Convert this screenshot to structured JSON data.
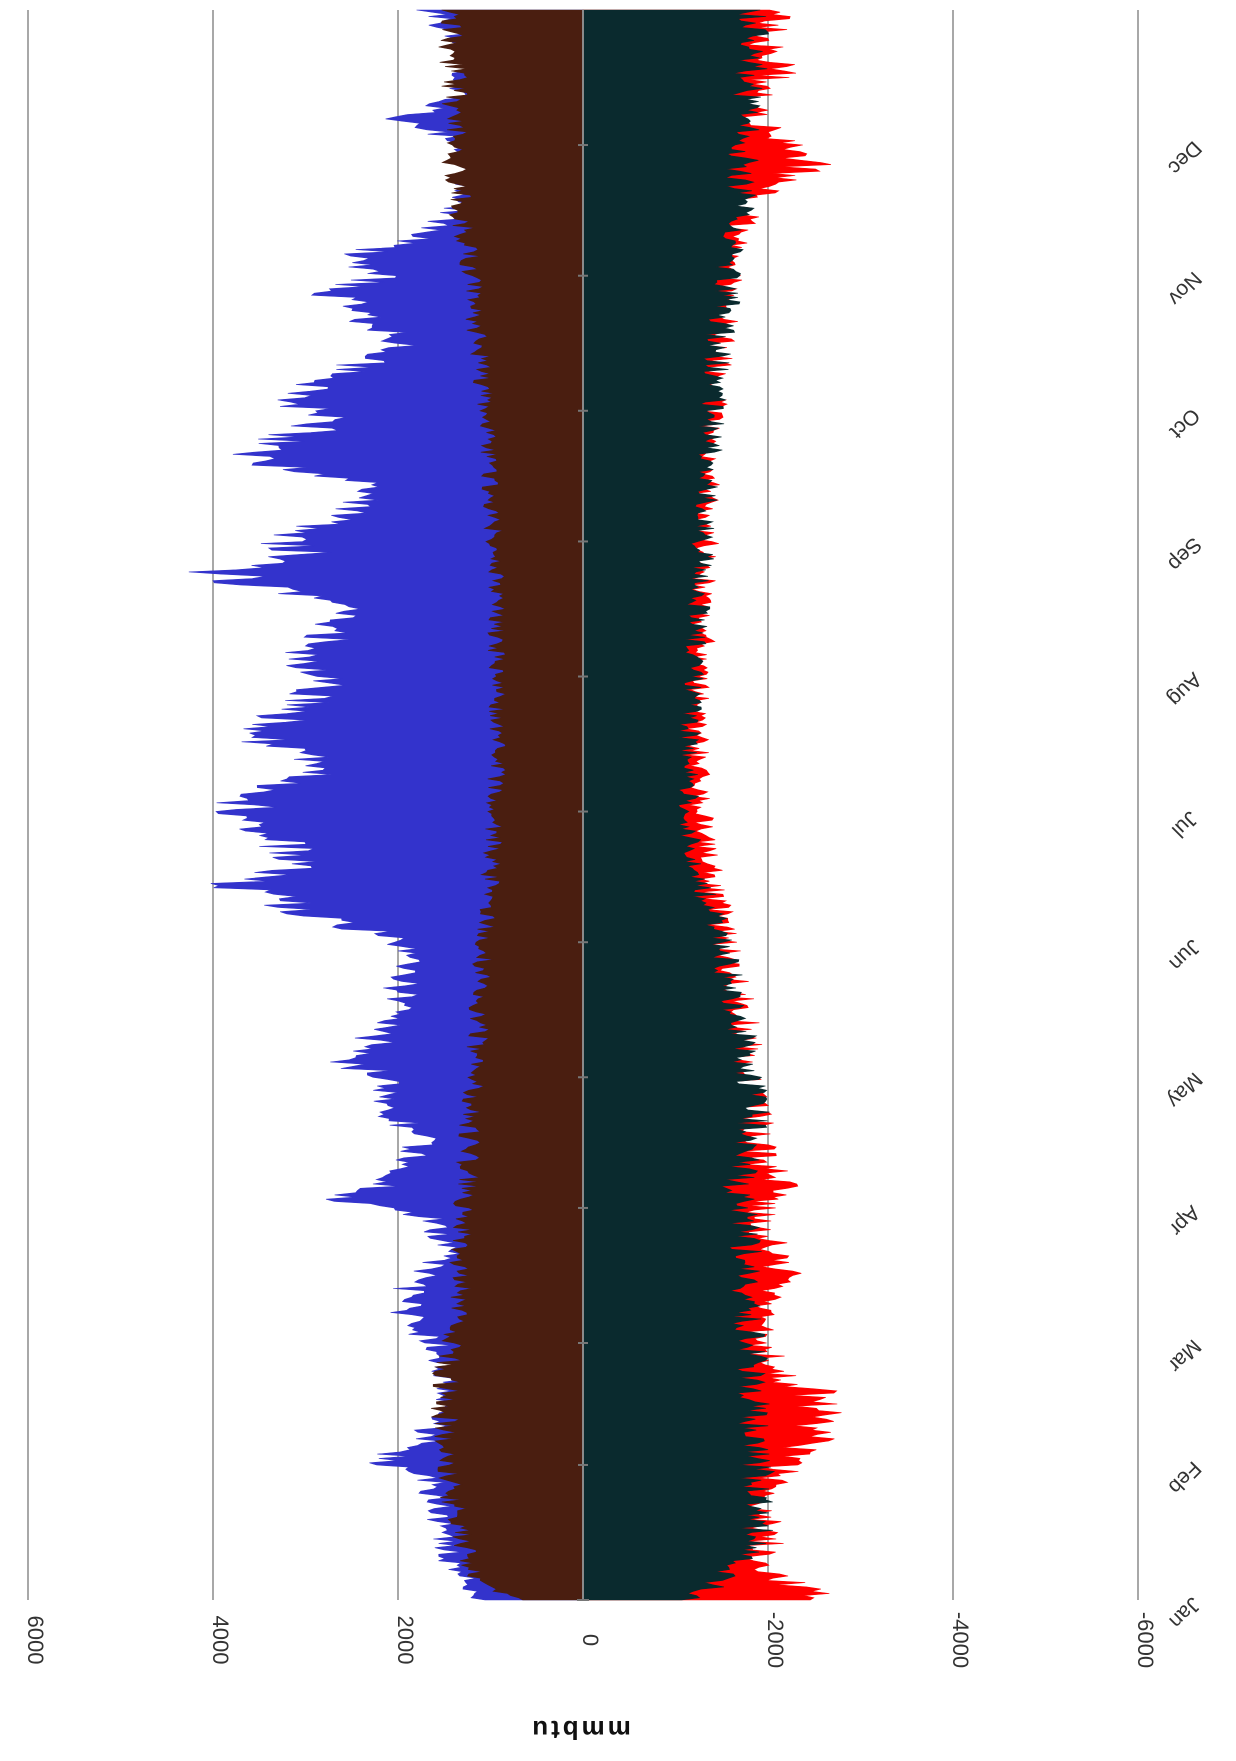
{
  "chart_data": {
    "type": "area",
    "orientation": "rotated-180",
    "title": "",
    "xlabel": "",
    "ylabel": "mmbtu",
    "ylim": [
      -6000,
      6000
    ],
    "y_ticks": [
      6000,
      4000,
      2000,
      0,
      -2000,
      -4000,
      -6000
    ],
    "y_tick_labels": [
      "6000",
      "4000",
      "2000",
      "0",
      "-2000",
      "-4000",
      "-6000"
    ],
    "x_range_days": [
      0,
      365
    ],
    "months": [
      {
        "label": "Jan",
        "day": 0
      },
      {
        "label": "Feb",
        "day": 31
      },
      {
        "label": "Mar",
        "day": 59
      },
      {
        "label": "Apr",
        "day": 90
      },
      {
        "label": "May",
        "day": 120
      },
      {
        "label": "Jun",
        "day": 151
      },
      {
        "label": "Jul",
        "day": 181
      },
      {
        "label": "Aug",
        "day": 212
      },
      {
        "label": "Sep",
        "day": 243
      },
      {
        "label": "Oct",
        "day": 273
      },
      {
        "label": "Nov",
        "day": 304
      },
      {
        "label": "Dec",
        "day": 334
      }
    ],
    "grid": true,
    "legend": "none",
    "series": [
      {
        "key": "positive_peak",
        "color": "#3333cc",
        "points": [
          [
            0,
            1100
          ],
          [
            10,
            1400
          ],
          [
            20,
            1500
          ],
          [
            28,
            1600
          ],
          [
            32,
            2100
          ],
          [
            36,
            1700
          ],
          [
            45,
            1400
          ],
          [
            58,
            1500
          ],
          [
            62,
            1700
          ],
          [
            67,
            1900
          ],
          [
            72,
            1800
          ],
          [
            80,
            1400
          ],
          [
            88,
            1600
          ],
          [
            92,
            2600
          ],
          [
            96,
            2000
          ],
          [
            101,
            1800
          ],
          [
            106,
            1700
          ],
          [
            110,
            1900
          ],
          [
            115,
            2100
          ],
          [
            120,
            2000
          ],
          [
            124,
            2600
          ],
          [
            128,
            2200
          ],
          [
            134,
            2000
          ],
          [
            140,
            1900
          ],
          [
            146,
            1800
          ],
          [
            152,
            1900
          ],
          [
            156,
            2700
          ],
          [
            160,
            3100
          ],
          [
            164,
            3600
          ],
          [
            168,
            3100
          ],
          [
            172,
            3000
          ],
          [
            176,
            3300
          ],
          [
            180,
            3700
          ],
          [
            184,
            3400
          ],
          [
            188,
            3000
          ],
          [
            192,
            2700
          ],
          [
            196,
            3200
          ],
          [
            200,
            3400
          ],
          [
            204,
            3000
          ],
          [
            208,
            2800
          ],
          [
            212,
            2700
          ],
          [
            216,
            2900
          ],
          [
            220,
            2700
          ],
          [
            224,
            2600
          ],
          [
            228,
            2500
          ],
          [
            232,
            3300
          ],
          [
            236,
            3800
          ],
          [
            240,
            2900
          ],
          [
            244,
            3200
          ],
          [
            248,
            2600
          ],
          [
            252,
            2300
          ],
          [
            256,
            2100
          ],
          [
            260,
            3100
          ],
          [
            264,
            3500
          ],
          [
            268,
            2900
          ],
          [
            272,
            2700
          ],
          [
            276,
            3100
          ],
          [
            280,
            2600
          ],
          [
            284,
            2300
          ],
          [
            288,
            1900
          ],
          [
            292,
            2100
          ],
          [
            296,
            2400
          ],
          [
            300,
            2600
          ],
          [
            304,
            2100
          ],
          [
            308,
            2500
          ],
          [
            312,
            1800
          ],
          [
            316,
            1500
          ],
          [
            320,
            1300
          ],
          [
            330,
            1200
          ],
          [
            335,
            1300
          ],
          [
            340,
            1900
          ],
          [
            345,
            1300
          ],
          [
            355,
            1200
          ],
          [
            365,
            1600
          ]
        ]
      },
      {
        "key": "positive_base",
        "color": "#4a1e10",
        "points": [
          [
            0,
            700
          ],
          [
            5,
            1100
          ],
          [
            15,
            1300
          ],
          [
            30,
            1400
          ],
          [
            45,
            1450
          ],
          [
            58,
            1400
          ],
          [
            70,
            1300
          ],
          [
            85,
            1250
          ],
          [
            100,
            1200
          ],
          [
            115,
            1150
          ],
          [
            130,
            1100
          ],
          [
            145,
            1050
          ],
          [
            155,
            1000
          ],
          [
            170,
            950
          ],
          [
            190,
            900
          ],
          [
            210,
            900
          ],
          [
            230,
            900
          ],
          [
            250,
            950
          ],
          [
            270,
            1000
          ],
          [
            290,
            1100
          ],
          [
            305,
            1150
          ],
          [
            320,
            1300
          ],
          [
            335,
            1350
          ],
          [
            350,
            1350
          ],
          [
            365,
            1400
          ]
        ]
      },
      {
        "key": "negative_peak",
        "color": "#ff0000",
        "points": [
          [
            0,
            -2500
          ],
          [
            6,
            -2000
          ],
          [
            10,
            -1900
          ],
          [
            20,
            -1900
          ],
          [
            28,
            -2000
          ],
          [
            32,
            -2100
          ],
          [
            36,
            -2400
          ],
          [
            42,
            -2500
          ],
          [
            48,
            -2400
          ],
          [
            52,
            -2000
          ],
          [
            58,
            -1900
          ],
          [
            64,
            -1800
          ],
          [
            70,
            -1900
          ],
          [
            76,
            -2100
          ],
          [
            80,
            -2000
          ],
          [
            86,
            -1800
          ],
          [
            90,
            -1900
          ],
          [
            92,
            -2000
          ],
          [
            96,
            -2100
          ],
          [
            100,
            -1900
          ],
          [
            104,
            -1850
          ],
          [
            110,
            -1800
          ],
          [
            115,
            -1750
          ],
          [
            120,
            -1700
          ],
          [
            130,
            -1700
          ],
          [
            140,
            -1600
          ],
          [
            150,
            -1500
          ],
          [
            160,
            -1400
          ],
          [
            170,
            -1300
          ],
          [
            180,
            -1250
          ],
          [
            190,
            -1200
          ],
          [
            200,
            -1200
          ],
          [
            210,
            -1200
          ],
          [
            220,
            -1250
          ],
          [
            230,
            -1250
          ],
          [
            240,
            -1300
          ],
          [
            250,
            -1300
          ],
          [
            260,
            -1300
          ],
          [
            270,
            -1350
          ],
          [
            280,
            -1400
          ],
          [
            290,
            -1450
          ],
          [
            300,
            -1500
          ],
          [
            310,
            -1600
          ],
          [
            320,
            -1700
          ],
          [
            326,
            -2100
          ],
          [
            330,
            -2400
          ],
          [
            336,
            -2000
          ],
          [
            342,
            -1800
          ],
          [
            348,
            -1900
          ],
          [
            352,
            -2100
          ],
          [
            356,
            -1900
          ],
          [
            360,
            -2000
          ],
          [
            365,
            -2000
          ]
        ]
      },
      {
        "key": "negative_base",
        "color": "#0a2a2e",
        "points": [
          [
            0,
            -1100
          ],
          [
            5,
            -1500
          ],
          [
            15,
            -1800
          ],
          [
            25,
            -1850
          ],
          [
            35,
            -1800
          ],
          [
            45,
            -1800
          ],
          [
            58,
            -1750
          ],
          [
            70,
            -1700
          ],
          [
            85,
            -1700
          ],
          [
            95,
            -1600
          ],
          [
            105,
            -1750
          ],
          [
            115,
            -1800
          ],
          [
            125,
            -1700
          ],
          [
            135,
            -1600
          ],
          [
            145,
            -1500
          ],
          [
            155,
            -1400
          ],
          [
            165,
            -1200
          ],
          [
            180,
            -1100
          ],
          [
            195,
            -1100
          ],
          [
            210,
            -1150
          ],
          [
            225,
            -1200
          ],
          [
            240,
            -1250
          ],
          [
            255,
            -1300
          ],
          [
            270,
            -1350
          ],
          [
            285,
            -1400
          ],
          [
            300,
            -1500
          ],
          [
            315,
            -1600
          ],
          [
            325,
            -1650
          ],
          [
            335,
            -1700
          ],
          [
            350,
            -1750
          ],
          [
            365,
            -1800
          ]
        ]
      }
    ]
  }
}
